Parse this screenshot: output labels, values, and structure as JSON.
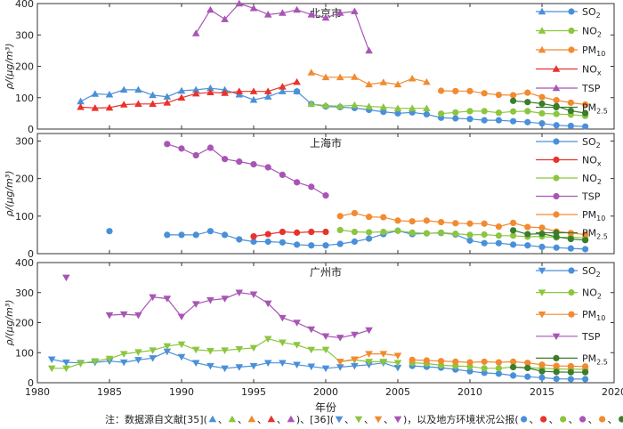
{
  "x_label": "年份",
  "x_ticks": [
    1980,
    1985,
    1990,
    1995,
    2000,
    2005,
    2010,
    2015,
    2020
  ],
  "y_label": "ρ/(μg/m³)",
  "note": {
    "prefix": "注：数据源自文献[35](",
    "mid": ")、[36](",
    "suffix": ")，以及地方环境状况公报(",
    "end": ")."
  },
  "colors": {
    "SO2": "#4a90d9",
    "NO2": "#8cc63f",
    "PM10": "#f28a30",
    "NOx": "#e8322b",
    "TSP": "#a855b5",
    "PM25": "#3a7d2c"
  },
  "chart_data": [
    {
      "type": "line",
      "title": "北京市",
      "xlim": [
        1980,
        2020
      ],
      "ylim": [
        0,
        400
      ],
      "yticks": [
        0,
        100,
        200,
        300,
        400
      ],
      "legend": "top-right",
      "series": [
        {
          "name": "SO2",
          "key": "SO2",
          "marker": "triangle-up",
          "x": [
            1983,
            1984,
            1985,
            1986,
            1987,
            1988,
            1989,
            1990,
            1991,
            1992,
            1993,
            1994,
            1995,
            1996,
            1997,
            1998
          ],
          "y": [
            88,
            112,
            110,
            125,
            125,
            108,
            103,
            122,
            125,
            130,
            125,
            110,
            93,
            103,
            120,
            120
          ]
        },
        {
          "name": "SO2",
          "key": "SO2",
          "marker": "circle",
          "x": [
            1998,
            1999,
            2000,
            2001,
            2002,
            2003,
            2004,
            2005,
            2006,
            2007,
            2008,
            2009,
            2010,
            2011,
            2012,
            2013,
            2014,
            2015,
            2016,
            2017,
            2018
          ],
          "y": [
            120,
            80,
            72,
            70,
            67,
            61,
            55,
            50,
            53,
            47,
            36,
            34,
            32,
            28,
            28,
            25,
            22,
            18,
            12,
            10,
            8
          ]
        },
        {
          "name": "NO2",
          "key": "NO2",
          "marker": "triangle-up",
          "x": [
            1999,
            2000,
            2001,
            2002,
            2003,
            2004,
            2005,
            2006,
            2007
          ],
          "y": [
            80,
            75,
            73,
            76,
            72,
            70,
            66,
            66,
            66
          ]
        },
        {
          "name": "NO2",
          "key": "NO2",
          "marker": "circle",
          "x": [
            2008,
            2009,
            2010,
            2011,
            2012,
            2013,
            2014,
            2015,
            2016,
            2017,
            2018
          ],
          "y": [
            49,
            53,
            57,
            57,
            52,
            56,
            57,
            50,
            48,
            46,
            42
          ]
        },
        {
          "name": "PM10",
          "key": "PM10",
          "marker": "triangle-up",
          "x": [
            1999,
            2000,
            2001,
            2002,
            2003,
            2004,
            2005,
            2006,
            2007
          ],
          "y": [
            180,
            165,
            165,
            166,
            142,
            149,
            142,
            161,
            150
          ]
        },
        {
          "name": "PM10",
          "key": "PM10",
          "marker": "circle",
          "x": [
            2008,
            2009,
            2010,
            2011,
            2012,
            2013,
            2014,
            2015,
            2016,
            2017,
            2018
          ],
          "y": [
            122,
            121,
            121,
            114,
            109,
            108,
            116,
            102,
            92,
            84,
            78
          ]
        },
        {
          "name": "NOx",
          "key": "NOx",
          "marker": "triangle-up",
          "x": [
            1983,
            1984,
            1985,
            1986,
            1987,
            1988,
            1989,
            1990,
            1991,
            1992,
            1993,
            1994,
            1995,
            1996,
            1997,
            1998
          ],
          "y": [
            70,
            67,
            68,
            78,
            80,
            80,
            84,
            100,
            113,
            117,
            115,
            120,
            120,
            120,
            135,
            150
          ]
        },
        {
          "name": "TSP",
          "key": "TSP",
          "marker": "triangle-up",
          "x": [
            1991,
            1992,
            1993,
            1994,
            1995,
            1996,
            1997,
            1998,
            1999,
            2000,
            2001,
            2002,
            2003
          ],
          "y": [
            305,
            380,
            350,
            400,
            385,
            365,
            370,
            380,
            365,
            355,
            370,
            375,
            250
          ]
        },
        {
          "name": "PM2.5",
          "key": "PM25",
          "marker": "circle",
          "x": [
            2013,
            2014,
            2015,
            2016,
            2017,
            2018
          ],
          "y": [
            90,
            86,
            81,
            73,
            58,
            51
          ]
        }
      ],
      "legend_entries": [
        {
          "label": "SO",
          "sub": "2",
          "key": "SO2",
          "markers": [
            "triangle-up",
            "circle"
          ]
        },
        {
          "label": "NO",
          "sub": "2",
          "key": "NO2",
          "markers": [
            "triangle-up",
            "circle"
          ]
        },
        {
          "label": "PM",
          "sub": "10",
          "key": "PM10",
          "markers": [
            "triangle-up",
            "circle"
          ]
        },
        {
          "label": "NO",
          "sub": "x",
          "key": "NOx",
          "markers": [
            "triangle-up"
          ]
        },
        {
          "label": "TSP",
          "sub": "",
          "key": "TSP",
          "markers": [
            "triangle-up"
          ]
        },
        {
          "label": "PM",
          "sub": "2.5",
          "key": "PM25",
          "markers": [
            "circle"
          ]
        }
      ]
    },
    {
      "type": "line",
      "title": "上海市",
      "xlim": [
        1980,
        2020
      ],
      "ylim": [
        0,
        320
      ],
      "yticks": [
        0,
        100,
        200,
        300
      ],
      "legend": "top-right",
      "series": [
        {
          "name": "SO2",
          "key": "SO2",
          "marker": "circle",
          "x": [
            1985
          ],
          "y": [
            60
          ]
        },
        {
          "name": "SO2",
          "key": "SO2",
          "marker": "circle",
          "x": [
            1989,
            1990,
            1991,
            1992,
            1993,
            1994,
            1995,
            1996,
            1997,
            1998,
            1999,
            2000,
            2001,
            2002,
            2003,
            2004,
            2005,
            2006,
            2007,
            2008,
            2009,
            2010,
            2011,
            2012,
            2013,
            2014,
            2015,
            2016,
            2017,
            2018
          ],
          "y": [
            50,
            50,
            50,
            60,
            50,
            38,
            32,
            32,
            30,
            24,
            22,
            22,
            26,
            32,
            40,
            52,
            61,
            52,
            54,
            55,
            51,
            35,
            28,
            28,
            24,
            22,
            18,
            16,
            14,
            12
          ]
        },
        {
          "name": "NOx",
          "key": "NOx",
          "marker": "circle",
          "x": [
            1995,
            1996,
            1997,
            1998,
            1999,
            2000
          ],
          "y": [
            46,
            52,
            58,
            56,
            58,
            58
          ]
        },
        {
          "name": "NO2",
          "key": "NO2",
          "marker": "circle",
          "x": [
            2001,
            2002,
            2003,
            2004,
            2005,
            2006,
            2007,
            2008,
            2009,
            2010,
            2011,
            2012,
            2013,
            2014,
            2015,
            2016,
            2017,
            2018
          ],
          "y": [
            63,
            58,
            57,
            58,
            61,
            56,
            54,
            56,
            53,
            50,
            51,
            48,
            48,
            45,
            46,
            43,
            44,
            42
          ]
        },
        {
          "name": "TSP",
          "key": "TSP",
          "marker": "circle",
          "x": [
            1989,
            1990,
            1991,
            1992,
            1993,
            1994,
            1995,
            1996,
            1997,
            1998,
            1999,
            2000
          ],
          "y": [
            292,
            280,
            262,
            282,
            252,
            245,
            238,
            230,
            210,
            190,
            178,
            155
          ]
        },
        {
          "name": "PM10",
          "key": "PM10",
          "marker": "circle",
          "x": [
            2001,
            2002,
            2003,
            2004,
            2005,
            2006,
            2007,
            2008,
            2009,
            2010,
            2011,
            2012,
            2013,
            2014,
            2015,
            2016,
            2017,
            2018
          ],
          "y": [
            100,
            108,
            98,
            97,
            88,
            86,
            88,
            84,
            81,
            80,
            80,
            72,
            82,
            71,
            69,
            59,
            55,
            51
          ]
        },
        {
          "name": "PM2.5",
          "key": "PM25",
          "marker": "circle",
          "x": [
            2013,
            2014,
            2015,
            2016,
            2017,
            2018
          ],
          "y": [
            62,
            52,
            53,
            45,
            39,
            36
          ]
        }
      ],
      "legend_entries": [
        {
          "label": "SO",
          "sub": "2",
          "key": "SO2",
          "markers": [
            "circle"
          ]
        },
        {
          "label": "NO",
          "sub": "x",
          "key": "NOx",
          "markers": [
            "circle"
          ]
        },
        {
          "label": "NO",
          "sub": "2",
          "key": "NO2",
          "markers": [
            "circle"
          ]
        },
        {
          "label": "TSP",
          "sub": "",
          "key": "TSP",
          "markers": [
            "circle"
          ]
        },
        {
          "label": "PM",
          "sub": "10",
          "key": "PM10",
          "markers": [
            "circle"
          ]
        },
        {
          "label": "PM",
          "sub": "2.5",
          "key": "PM25",
          "markers": [
            "circle"
          ]
        }
      ]
    },
    {
      "type": "line",
      "title": "广州市",
      "xlim": [
        1980,
        2020
      ],
      "ylim": [
        0,
        400
      ],
      "yticks": [
        0,
        100,
        200,
        300,
        400
      ],
      "legend": "top-right",
      "series": [
        {
          "name": "SO2",
          "key": "SO2",
          "marker": "triangle-down",
          "x": [
            1981,
            1982,
            1983,
            1984,
            1985,
            1986,
            1987,
            1988,
            1989,
            1990,
            1991,
            1992,
            1993,
            1994,
            1995,
            1996,
            1997,
            1998,
            1999,
            2000,
            2001,
            2002,
            2003,
            2004,
            2005
          ],
          "y": [
            78,
            68,
            66,
            68,
            72,
            68,
            76,
            82,
            104,
            86,
            66,
            56,
            48,
            52,
            56,
            66,
            66,
            60,
            54,
            48,
            52,
            56,
            60,
            66,
            50
          ]
        },
        {
          "name": "SO2",
          "key": "SO2",
          "marker": "circle",
          "x": [
            2006,
            2007,
            2008,
            2009,
            2010,
            2011,
            2012,
            2013,
            2014,
            2015,
            2016,
            2017,
            2018
          ],
          "y": [
            56,
            53,
            50,
            44,
            38,
            33,
            30,
            24,
            20,
            17,
            13,
            12,
            12
          ]
        },
        {
          "name": "NO2",
          "key": "NO2",
          "marker": "triangle-down",
          "x": [
            1981,
            1982,
            1983,
            1984,
            1985,
            1986,
            1987,
            1988,
            1989,
            1990,
            1991,
            1992,
            1993,
            1994,
            1995,
            1996,
            1997,
            1998,
            1999,
            2000,
            2001,
            2002,
            2003,
            2004,
            2005
          ],
          "y": [
            48,
            48,
            64,
            72,
            80,
            96,
            102,
            108,
            122,
            128,
            110,
            106,
            108,
            112,
            116,
            146,
            134,
            126,
            110,
            110,
            70,
            76,
            70,
            70,
            66
          ]
        },
        {
          "name": "NO2",
          "key": "NO2",
          "marker": "circle",
          "x": [
            2006,
            2007,
            2008,
            2009,
            2010,
            2011,
            2012,
            2013,
            2014,
            2015,
            2016,
            2017,
            2018
          ],
          "y": [
            66,
            64,
            58,
            56,
            54,
            48,
            48,
            52,
            50,
            48,
            46,
            45,
            45
          ]
        },
        {
          "name": "PM10",
          "key": "PM10",
          "marker": "triangle-down",
          "x": [
            2001,
            2002,
            2003,
            2004,
            2005
          ],
          "y": [
            70,
            78,
            96,
            96,
            90
          ]
        },
        {
          "name": "PM10",
          "key": "PM10",
          "marker": "circle",
          "x": [
            2006,
            2007,
            2008,
            2009,
            2010,
            2011,
            2012,
            2013,
            2014,
            2015,
            2016,
            2017,
            2018
          ],
          "y": [
            76,
            74,
            72,
            70,
            68,
            70,
            68,
            70,
            66,
            60,
            56,
            55,
            54
          ]
        },
        {
          "name": "TSP",
          "key": "TSP",
          "marker": "triangle-down",
          "x": [
            1982
          ],
          "y": [
            350
          ]
        },
        {
          "name": "TSP",
          "key": "TSP",
          "marker": "triangle-down",
          "x": [
            1985,
            1986,
            1987,
            1988,
            1989,
            1990,
            1991,
            1992,
            1993,
            1994,
            1995,
            1996,
            1997,
            1998,
            1999,
            2000,
            2001,
            2002,
            2003
          ],
          "y": [
            225,
            228,
            225,
            285,
            280,
            220,
            262,
            275,
            280,
            300,
            294,
            264,
            216,
            200,
            178,
            155,
            150,
            160,
            175
          ]
        },
        {
          "name": "PM2.5",
          "key": "PM25",
          "marker": "circle",
          "x": [
            2013,
            2014,
            2015,
            2016,
            2017,
            2018
          ],
          "y": [
            52,
            49,
            38,
            36,
            35,
            35
          ]
        }
      ],
      "legend_entries": [
        {
          "label": "SO",
          "sub": "2",
          "key": "SO2",
          "markers": [
            "triangle-down",
            "circle"
          ]
        },
        {
          "label": "NO",
          "sub": "2",
          "key": "NO2",
          "markers": [
            "triangle-down",
            "circle"
          ]
        },
        {
          "label": "PM",
          "sub": "10",
          "key": "PM10",
          "markers": [
            "triangle-down",
            "circle"
          ]
        },
        {
          "label": "TSP",
          "sub": "",
          "key": "TSP",
          "markers": [
            "triangle-down"
          ]
        },
        {
          "label": "PM",
          "sub": "2.5",
          "key": "PM25",
          "markers": [
            "circle"
          ]
        }
      ]
    }
  ]
}
